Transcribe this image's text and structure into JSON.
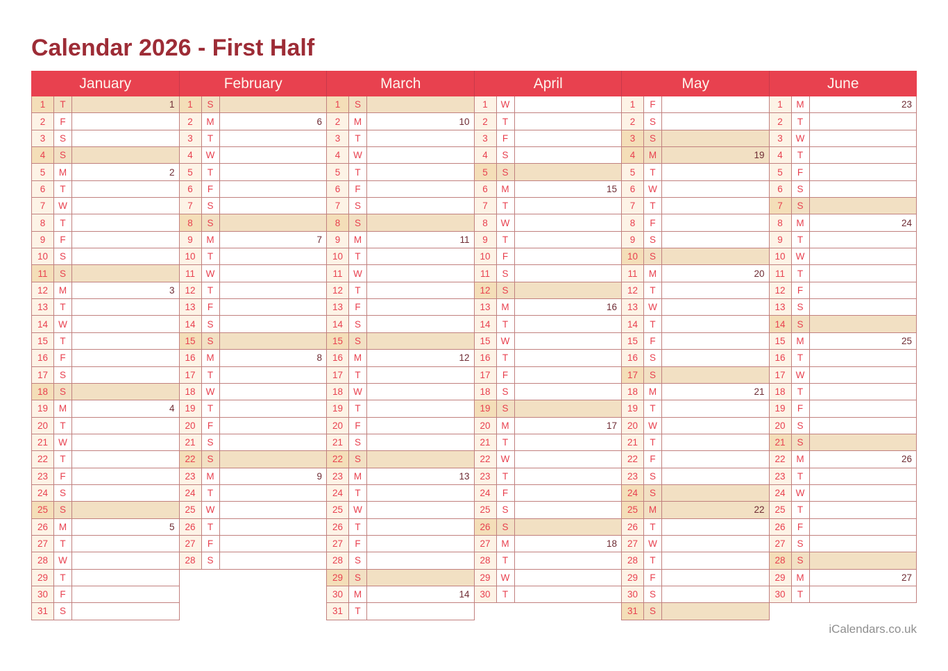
{
  "page": {
    "title": "Calendar 2026 - First Half",
    "footer": "iCalendars.co.uk"
  },
  "colors": {
    "accent": "#e8414f",
    "title": "#9d2c36",
    "week_number": "#6e2b33",
    "highlight": "#f2e0c3",
    "highlight_day": "#f4deb8",
    "day_col": "#fdf3e6",
    "border": "#c1807e",
    "header_divider": "#c9394a",
    "header_text": "#fdf4ed",
    "footer_text": "#8f8f8f"
  },
  "calendar": {
    "year": 2026,
    "months": [
      {
        "name": "January",
        "days": [
          {
            "d": 1,
            "w": "T",
            "n": "1",
            "h": 1
          },
          {
            "d": 2,
            "w": "F"
          },
          {
            "d": 3,
            "w": "S"
          },
          {
            "d": 4,
            "w": "S",
            "h": 1
          },
          {
            "d": 5,
            "w": "M",
            "n": "2"
          },
          {
            "d": 6,
            "w": "T"
          },
          {
            "d": 7,
            "w": "W"
          },
          {
            "d": 8,
            "w": "T"
          },
          {
            "d": 9,
            "w": "F"
          },
          {
            "d": 10,
            "w": "S"
          },
          {
            "d": 11,
            "w": "S",
            "h": 1
          },
          {
            "d": 12,
            "w": "M",
            "n": "3"
          },
          {
            "d": 13,
            "w": "T"
          },
          {
            "d": 14,
            "w": "W"
          },
          {
            "d": 15,
            "w": "T"
          },
          {
            "d": 16,
            "w": "F"
          },
          {
            "d": 17,
            "w": "S"
          },
          {
            "d": 18,
            "w": "S",
            "h": 1
          },
          {
            "d": 19,
            "w": "M",
            "n": "4"
          },
          {
            "d": 20,
            "w": "T"
          },
          {
            "d": 21,
            "w": "W"
          },
          {
            "d": 22,
            "w": "T"
          },
          {
            "d": 23,
            "w": "F"
          },
          {
            "d": 24,
            "w": "S"
          },
          {
            "d": 25,
            "w": "S",
            "h": 1
          },
          {
            "d": 26,
            "w": "M",
            "n": "5"
          },
          {
            "d": 27,
            "w": "T"
          },
          {
            "d": 28,
            "w": "W"
          },
          {
            "d": 29,
            "w": "T"
          },
          {
            "d": 30,
            "w": "F"
          },
          {
            "d": 31,
            "w": "S"
          }
        ]
      },
      {
        "name": "February",
        "days": [
          {
            "d": 1,
            "w": "S",
            "h": 1
          },
          {
            "d": 2,
            "w": "M",
            "n": "6"
          },
          {
            "d": 3,
            "w": "T"
          },
          {
            "d": 4,
            "w": "W"
          },
          {
            "d": 5,
            "w": "T"
          },
          {
            "d": 6,
            "w": "F"
          },
          {
            "d": 7,
            "w": "S"
          },
          {
            "d": 8,
            "w": "S",
            "h": 1
          },
          {
            "d": 9,
            "w": "M",
            "n": "7"
          },
          {
            "d": 10,
            "w": "T"
          },
          {
            "d": 11,
            "w": "W"
          },
          {
            "d": 12,
            "w": "T"
          },
          {
            "d": 13,
            "w": "F"
          },
          {
            "d": 14,
            "w": "S"
          },
          {
            "d": 15,
            "w": "S",
            "h": 1
          },
          {
            "d": 16,
            "w": "M",
            "n": "8"
          },
          {
            "d": 17,
            "w": "T"
          },
          {
            "d": 18,
            "w": "W"
          },
          {
            "d": 19,
            "w": "T"
          },
          {
            "d": 20,
            "w": "F"
          },
          {
            "d": 21,
            "w": "S"
          },
          {
            "d": 22,
            "w": "S",
            "h": 1
          },
          {
            "d": 23,
            "w": "M",
            "n": "9"
          },
          {
            "d": 24,
            "w": "T"
          },
          {
            "d": 25,
            "w": "W"
          },
          {
            "d": 26,
            "w": "T"
          },
          {
            "d": 27,
            "w": "F"
          },
          {
            "d": 28,
            "w": "S"
          }
        ]
      },
      {
        "name": "March",
        "days": [
          {
            "d": 1,
            "w": "S",
            "h": 1
          },
          {
            "d": 2,
            "w": "M",
            "n": "10"
          },
          {
            "d": 3,
            "w": "T"
          },
          {
            "d": 4,
            "w": "W"
          },
          {
            "d": 5,
            "w": "T"
          },
          {
            "d": 6,
            "w": "F"
          },
          {
            "d": 7,
            "w": "S"
          },
          {
            "d": 8,
            "w": "S",
            "h": 1
          },
          {
            "d": 9,
            "w": "M",
            "n": "11"
          },
          {
            "d": 10,
            "w": "T"
          },
          {
            "d": 11,
            "w": "W"
          },
          {
            "d": 12,
            "w": "T"
          },
          {
            "d": 13,
            "w": "F"
          },
          {
            "d": 14,
            "w": "S"
          },
          {
            "d": 15,
            "w": "S",
            "h": 1
          },
          {
            "d": 16,
            "w": "M",
            "n": "12"
          },
          {
            "d": 17,
            "w": "T"
          },
          {
            "d": 18,
            "w": "W"
          },
          {
            "d": 19,
            "w": "T"
          },
          {
            "d": 20,
            "w": "F"
          },
          {
            "d": 21,
            "w": "S"
          },
          {
            "d": 22,
            "w": "S",
            "h": 1
          },
          {
            "d": 23,
            "w": "M",
            "n": "13"
          },
          {
            "d": 24,
            "w": "T"
          },
          {
            "d": 25,
            "w": "W"
          },
          {
            "d": 26,
            "w": "T"
          },
          {
            "d": 27,
            "w": "F"
          },
          {
            "d": 28,
            "w": "S"
          },
          {
            "d": 29,
            "w": "S",
            "h": 1
          },
          {
            "d": 30,
            "w": "M",
            "n": "14"
          },
          {
            "d": 31,
            "w": "T"
          }
        ]
      },
      {
        "name": "April",
        "days": [
          {
            "d": 1,
            "w": "W"
          },
          {
            "d": 2,
            "w": "T"
          },
          {
            "d": 3,
            "w": "F"
          },
          {
            "d": 4,
            "w": "S"
          },
          {
            "d": 5,
            "w": "S",
            "h": 1
          },
          {
            "d": 6,
            "w": "M",
            "n": "15"
          },
          {
            "d": 7,
            "w": "T"
          },
          {
            "d": 8,
            "w": "W"
          },
          {
            "d": 9,
            "w": "T"
          },
          {
            "d": 10,
            "w": "F"
          },
          {
            "d": 11,
            "w": "S"
          },
          {
            "d": 12,
            "w": "S",
            "h": 1
          },
          {
            "d": 13,
            "w": "M",
            "n": "16"
          },
          {
            "d": 14,
            "w": "T"
          },
          {
            "d": 15,
            "w": "W"
          },
          {
            "d": 16,
            "w": "T"
          },
          {
            "d": 17,
            "w": "F"
          },
          {
            "d": 18,
            "w": "S"
          },
          {
            "d": 19,
            "w": "S",
            "h": 1
          },
          {
            "d": 20,
            "w": "M",
            "n": "17"
          },
          {
            "d": 21,
            "w": "T"
          },
          {
            "d": 22,
            "w": "W"
          },
          {
            "d": 23,
            "w": "T"
          },
          {
            "d": 24,
            "w": "F"
          },
          {
            "d": 25,
            "w": "S"
          },
          {
            "d": 26,
            "w": "S",
            "h": 1
          },
          {
            "d": 27,
            "w": "M",
            "n": "18"
          },
          {
            "d": 28,
            "w": "T"
          },
          {
            "d": 29,
            "w": "W"
          },
          {
            "d": 30,
            "w": "T"
          }
        ]
      },
      {
        "name": "May",
        "days": [
          {
            "d": 1,
            "w": "F"
          },
          {
            "d": 2,
            "w": "S"
          },
          {
            "d": 3,
            "w": "S",
            "h": 1
          },
          {
            "d": 4,
            "w": "M",
            "n": "19",
            "h": 1
          },
          {
            "d": 5,
            "w": "T"
          },
          {
            "d": 6,
            "w": "W"
          },
          {
            "d": 7,
            "w": "T"
          },
          {
            "d": 8,
            "w": "F"
          },
          {
            "d": 9,
            "w": "S"
          },
          {
            "d": 10,
            "w": "S",
            "h": 1
          },
          {
            "d": 11,
            "w": "M",
            "n": "20"
          },
          {
            "d": 12,
            "w": "T"
          },
          {
            "d": 13,
            "w": "W"
          },
          {
            "d": 14,
            "w": "T"
          },
          {
            "d": 15,
            "w": "F"
          },
          {
            "d": 16,
            "w": "S"
          },
          {
            "d": 17,
            "w": "S",
            "h": 1
          },
          {
            "d": 18,
            "w": "M",
            "n": "21"
          },
          {
            "d": 19,
            "w": "T"
          },
          {
            "d": 20,
            "w": "W"
          },
          {
            "d": 21,
            "w": "T"
          },
          {
            "d": 22,
            "w": "F"
          },
          {
            "d": 23,
            "w": "S"
          },
          {
            "d": 24,
            "w": "S",
            "h": 1
          },
          {
            "d": 25,
            "w": "M",
            "n": "22",
            "h": 1
          },
          {
            "d": 26,
            "w": "T"
          },
          {
            "d": 27,
            "w": "W"
          },
          {
            "d": 28,
            "w": "T"
          },
          {
            "d": 29,
            "w": "F"
          },
          {
            "d": 30,
            "w": "S"
          },
          {
            "d": 31,
            "w": "S",
            "h": 1
          }
        ]
      },
      {
        "name": "June",
        "days": [
          {
            "d": 1,
            "w": "M",
            "n": "23"
          },
          {
            "d": 2,
            "w": "T"
          },
          {
            "d": 3,
            "w": "W"
          },
          {
            "d": 4,
            "w": "T"
          },
          {
            "d": 5,
            "w": "F"
          },
          {
            "d": 6,
            "w": "S"
          },
          {
            "d": 7,
            "w": "S",
            "h": 1
          },
          {
            "d": 8,
            "w": "M",
            "n": "24"
          },
          {
            "d": 9,
            "w": "T"
          },
          {
            "d": 10,
            "w": "W"
          },
          {
            "d": 11,
            "w": "T"
          },
          {
            "d": 12,
            "w": "F"
          },
          {
            "d": 13,
            "w": "S"
          },
          {
            "d": 14,
            "w": "S",
            "h": 1
          },
          {
            "d": 15,
            "w": "M",
            "n": "25"
          },
          {
            "d": 16,
            "w": "T"
          },
          {
            "d": 17,
            "w": "W"
          },
          {
            "d": 18,
            "w": "T"
          },
          {
            "d": 19,
            "w": "F"
          },
          {
            "d": 20,
            "w": "S"
          },
          {
            "d": 21,
            "w": "S",
            "h": 1
          },
          {
            "d": 22,
            "w": "M",
            "n": "26"
          },
          {
            "d": 23,
            "w": "T"
          },
          {
            "d": 24,
            "w": "W"
          },
          {
            "d": 25,
            "w": "T"
          },
          {
            "d": 26,
            "w": "F"
          },
          {
            "d": 27,
            "w": "S"
          },
          {
            "d": 28,
            "w": "S",
            "h": 1
          },
          {
            "d": 29,
            "w": "M",
            "n": "27"
          },
          {
            "d": 30,
            "w": "T"
          }
        ]
      }
    ]
  }
}
